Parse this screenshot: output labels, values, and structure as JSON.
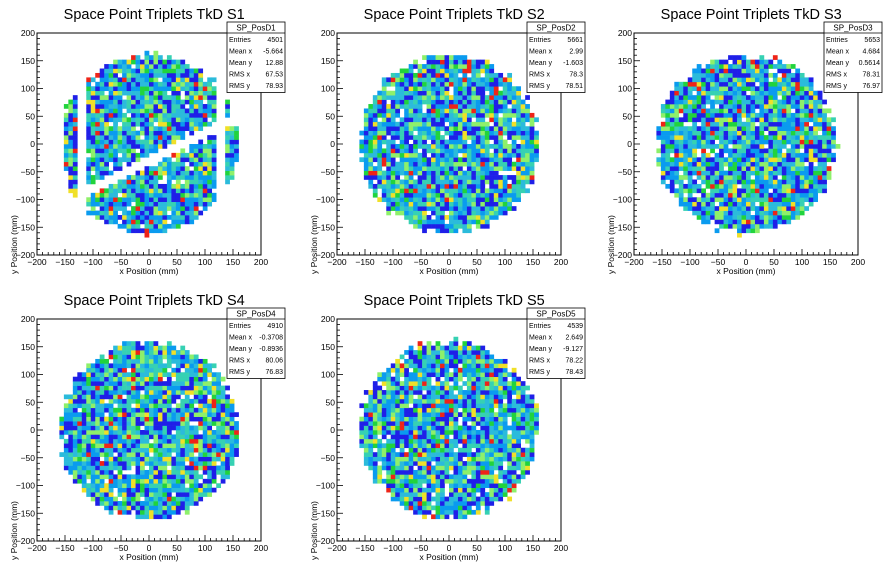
{
  "chart_data": [
    {
      "type": "heatmap",
      "title": "Space Point Triplets TkD S1",
      "xlabel": "x Position (mm)",
      "ylabel": "y Position (mm)",
      "xlim": [
        -200,
        200
      ],
      "ylim": [
        -200,
        200
      ],
      "xticks": [
        "−200",
        "−150",
        "−100",
        "−50",
        "0",
        "50",
        "100",
        "150",
        "200"
      ],
      "yticks": [
        "200",
        "150",
        "100",
        "50",
        "0",
        "−50",
        "−100",
        "−150",
        "−200"
      ],
      "region": "circle-with-gaps",
      "stats": {
        "name": "SP_PosD1",
        "rows": [
          {
            "label": "Entries",
            "value": "4501"
          },
          {
            "label": "Mean x",
            "value": "-5.664"
          },
          {
            "label": "Mean y",
            "value": "12.88"
          },
          {
            "label": "RMS x",
            "value": "67.53"
          },
          {
            "label": "RMS y",
            "value": "78.93"
          }
        ]
      }
    },
    {
      "type": "heatmap",
      "title": "Space Point Triplets TkD S2",
      "xlabel": "x Position (mm)",
      "ylabel": "y Position (mm)",
      "xlim": [
        -200,
        200
      ],
      "ylim": [
        -200,
        200
      ],
      "xticks": [
        "−200",
        "−150",
        "−100",
        "−50",
        "0",
        "50",
        "100",
        "150",
        "200"
      ],
      "yticks": [
        "200",
        "150",
        "100",
        "50",
        "0",
        "−50",
        "−100",
        "−150",
        "−200"
      ],
      "region": "circle",
      "stats": {
        "name": "SP_PosD2",
        "rows": [
          {
            "label": "Entries",
            "value": "5661"
          },
          {
            "label": "Mean x",
            "value": "2.99"
          },
          {
            "label": "Mean y",
            "value": "-1.603"
          },
          {
            "label": "RMS x",
            "value": "78.3"
          },
          {
            "label": "RMS y",
            "value": "78.51"
          }
        ]
      }
    },
    {
      "type": "heatmap",
      "title": "Space Point Triplets TkD S3",
      "xlabel": "x Position (mm)",
      "ylabel": "y Position (mm)",
      "xlim": [
        -200,
        200
      ],
      "ylim": [
        -200,
        200
      ],
      "xticks": [
        "−200",
        "−150",
        "−100",
        "−50",
        "0",
        "50",
        "100",
        "150",
        "200"
      ],
      "yticks": [
        "200",
        "150",
        "100",
        "50",
        "0",
        "−50",
        "−100",
        "−150",
        "−200"
      ],
      "region": "circle",
      "stats": {
        "name": "SP_PosD3",
        "rows": [
          {
            "label": "Entries",
            "value": "5653"
          },
          {
            "label": "Mean x",
            "value": "4.684"
          },
          {
            "label": "Mean y",
            "value": "0.5614"
          },
          {
            "label": "RMS x",
            "value": "78.31"
          },
          {
            "label": "RMS y",
            "value": "76.97"
          }
        ]
      }
    },
    {
      "type": "heatmap",
      "title": "Space Point Triplets TkD S4",
      "xlabel": "x Position (mm)",
      "ylabel": "y Position (mm)",
      "xlim": [
        -200,
        200
      ],
      "ylim": [
        -200,
        200
      ],
      "xticks": [
        "−200",
        "−150",
        "−100",
        "−50",
        "0",
        "50",
        "100",
        "150",
        "200"
      ],
      "yticks": [
        "200",
        "150",
        "100",
        "50",
        "0",
        "−50",
        "−100",
        "−150",
        "−200"
      ],
      "region": "circle",
      "stats": {
        "name": "SP_PosD4",
        "rows": [
          {
            "label": "Entries",
            "value": "4910"
          },
          {
            "label": "Mean x",
            "value": "-0.3708"
          },
          {
            "label": "Mean y",
            "value": "-0.8936"
          },
          {
            "label": "RMS x",
            "value": "80.06"
          },
          {
            "label": "RMS y",
            "value": "76.83"
          }
        ]
      }
    },
    {
      "type": "heatmap",
      "title": "Space Point Triplets TkD S5",
      "xlabel": "x Position (mm)",
      "ylabel": "y Position (mm)",
      "xlim": [
        -200,
        200
      ],
      "ylim": [
        -200,
        200
      ],
      "xticks": [
        "−200",
        "−150",
        "−100",
        "−50",
        "0",
        "50",
        "100",
        "150",
        "200"
      ],
      "yticks": [
        "200",
        "150",
        "100",
        "50",
        "0",
        "−50",
        "−100",
        "−150",
        "−200"
      ],
      "region": "circle",
      "stats": {
        "name": "SP_PosD5",
        "rows": [
          {
            "label": "Entries",
            "value": "4539"
          },
          {
            "label": "Mean x",
            "value": "2.649"
          },
          {
            "label": "Mean y",
            "value": "-9.127"
          },
          {
            "label": "RMS x",
            "value": "78.22"
          },
          {
            "label": "RMS y",
            "value": "78.43"
          }
        ]
      }
    }
  ],
  "colors": {
    "palette": [
      "#1f1fe8",
      "#0a9bef",
      "#2bbbdb",
      "#36d1b3",
      "#8ef06a",
      "#21d33d",
      "#f0e028",
      "#ee2418"
    ],
    "axis": "#000000",
    "background": "#ffffff"
  }
}
